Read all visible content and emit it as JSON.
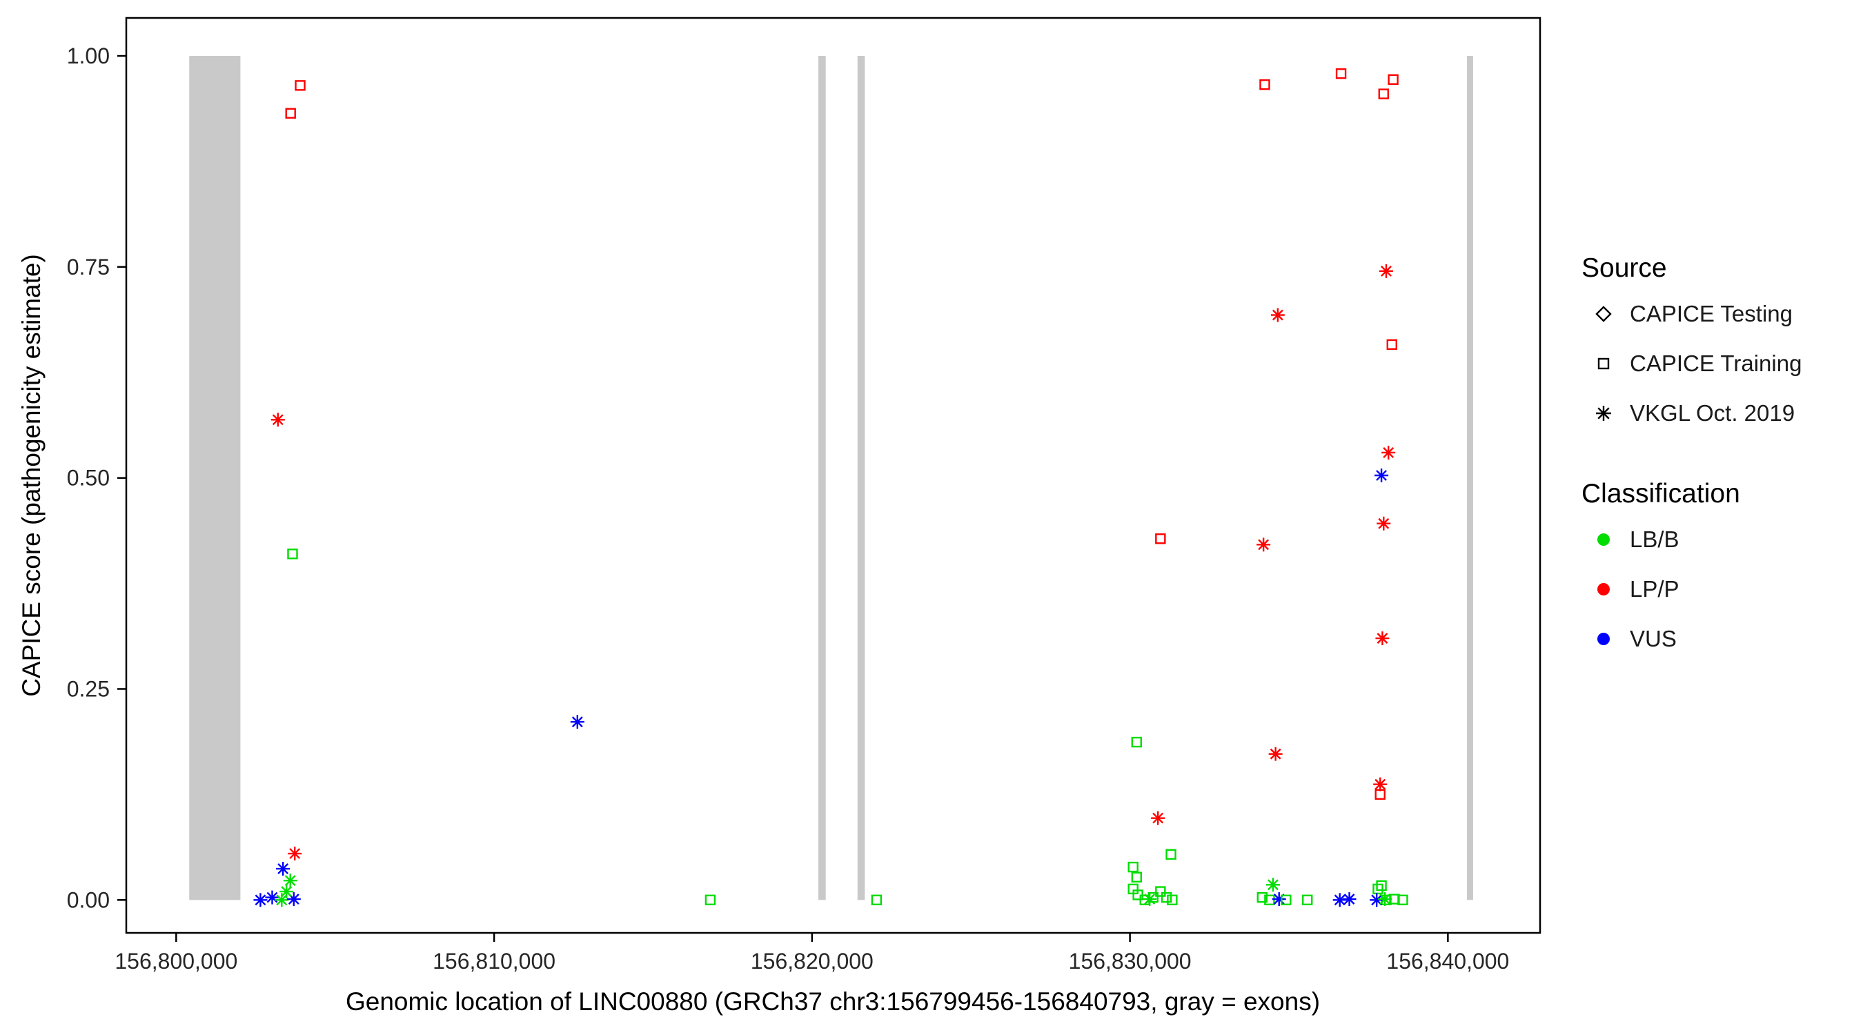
{
  "chart_data": {
    "type": "scatter",
    "title": "",
    "xlabel": "Genomic location of LINC00880 (GRCh37 chr3:156799456-156840793, gray = exons)",
    "ylabel": "CAPICE score (pathogenicity estimate)",
    "x_range": [
      156798430,
      156842900
    ],
    "y_range": [
      -0.039,
      1.045
    ],
    "grid": "off",
    "x_ticks": [
      {
        "value": 156800000,
        "label": "156,800,000"
      },
      {
        "value": 156810000,
        "label": "156,810,000"
      },
      {
        "value": 156820000,
        "label": "156,820,000"
      },
      {
        "value": 156830000,
        "label": "156,830,000"
      },
      {
        "value": 156840000,
        "label": "156,840,000"
      }
    ],
    "y_ticks": [
      {
        "value": 0,
        "label": "0.00"
      },
      {
        "value": 0.25,
        "label": "0.25"
      },
      {
        "value": 0.5,
        "label": "0.50"
      },
      {
        "value": 0.75,
        "label": "0.75"
      },
      {
        "value": 1,
        "label": "1.00"
      }
    ],
    "exon_color": "#c9c9c9",
    "exons": [
      {
        "start": 156800410,
        "end": 156802020
      },
      {
        "start": 156820200,
        "end": 156820430
      },
      {
        "start": 156821430,
        "end": 156821660
      },
      {
        "start": 156840600,
        "end": 156840793
      }
    ],
    "class_colors": {
      "LB/B": "#00dd00",
      "LP/P": "#ff0000",
      "VUS": "#0000ff"
    },
    "source_shapes": {
      "testing": "diamond",
      "training": "square",
      "vkgl": "asterisk"
    },
    "points": [
      {
        "x": 156803900,
        "y": 0.965,
        "cls": "LP/P",
        "src": "training"
      },
      {
        "x": 156803600,
        "y": 0.932,
        "cls": "LP/P",
        "src": "training"
      },
      {
        "x": 156803200,
        "y": 0.569,
        "cls": "LP/P",
        "src": "vkgl"
      },
      {
        "x": 156803660,
        "y": 0.41,
        "cls": "LB/B",
        "src": "training"
      },
      {
        "x": 156803730,
        "y": 0.055,
        "cls": "LP/P",
        "src": "vkgl"
      },
      {
        "x": 156803360,
        "y": 0.037,
        "cls": "VUS",
        "src": "vkgl"
      },
      {
        "x": 156803590,
        "y": 0.023,
        "cls": "LB/B",
        "src": "vkgl"
      },
      {
        "x": 156802650,
        "y": 0.0,
        "cls": "VUS",
        "src": "vkgl"
      },
      {
        "x": 156803020,
        "y": 0.003,
        "cls": "VUS",
        "src": "vkgl"
      },
      {
        "x": 156803320,
        "y": 0.0,
        "cls": "LB/B",
        "src": "vkgl"
      },
      {
        "x": 156803700,
        "y": 0.001,
        "cls": "VUS",
        "src": "vkgl"
      },
      {
        "x": 156803470,
        "y": 0.01,
        "cls": "LB/B",
        "src": "vkgl"
      },
      {
        "x": 156812620,
        "y": 0.211,
        "cls": "VUS",
        "src": "vkgl"
      },
      {
        "x": 156816800,
        "y": 0.0,
        "cls": "LB/B",
        "src": "training"
      },
      {
        "x": 156822030,
        "y": 0.0,
        "cls": "LB/B",
        "src": "training"
      },
      {
        "x": 156830210,
        "y": 0.187,
        "cls": "LB/B",
        "src": "training"
      },
      {
        "x": 156830960,
        "y": 0.428,
        "cls": "LP/P",
        "src": "training"
      },
      {
        "x": 156830880,
        "y": 0.097,
        "cls": "LP/P",
        "src": "vkgl"
      },
      {
        "x": 156831290,
        "y": 0.054,
        "cls": "LB/B",
        "src": "training"
      },
      {
        "x": 156830100,
        "y": 0.039,
        "cls": "LB/B",
        "src": "training"
      },
      {
        "x": 156830210,
        "y": 0.027,
        "cls": "LB/B",
        "src": "training"
      },
      {
        "x": 156830100,
        "y": 0.013,
        "cls": "LB/B",
        "src": "training"
      },
      {
        "x": 156830250,
        "y": 0.006,
        "cls": "LB/B",
        "src": "training"
      },
      {
        "x": 156830470,
        "y": 0.0,
        "cls": "LB/B",
        "src": "training"
      },
      {
        "x": 156830730,
        "y": 0.003,
        "cls": "LB/B",
        "src": "training"
      },
      {
        "x": 156830960,
        "y": 0.01,
        "cls": "LB/B",
        "src": "training"
      },
      {
        "x": 156831150,
        "y": 0.003,
        "cls": "LB/B",
        "src": "training"
      },
      {
        "x": 156831330,
        "y": 0.0,
        "cls": "LB/B",
        "src": "training"
      },
      {
        "x": 156830620,
        "y": 0.001,
        "cls": "LB/B",
        "src": "vkgl"
      },
      {
        "x": 156834240,
        "y": 0.966,
        "cls": "LP/P",
        "src": "training"
      },
      {
        "x": 156834650,
        "y": 0.693,
        "cls": "LP/P",
        "src": "vkgl"
      },
      {
        "x": 156834200,
        "y": 0.421,
        "cls": "LP/P",
        "src": "vkgl"
      },
      {
        "x": 156834580,
        "y": 0.173,
        "cls": "LP/P",
        "src": "vkgl"
      },
      {
        "x": 156834500,
        "y": 0.018,
        "cls": "LB/B",
        "src": "vkgl"
      },
      {
        "x": 156834160,
        "y": 0.003,
        "cls": "LB/B",
        "src": "training"
      },
      {
        "x": 156834390,
        "y": 0.0,
        "cls": "LB/B",
        "src": "training"
      },
      {
        "x": 156834690,
        "y": 0.001,
        "cls": "VUS",
        "src": "vkgl"
      },
      {
        "x": 156834910,
        "y": 0.0,
        "cls": "LB/B",
        "src": "training"
      },
      {
        "x": 156835580,
        "y": 0.0,
        "cls": "LB/B",
        "src": "training"
      },
      {
        "x": 156836640,
        "y": 0.979,
        "cls": "LP/P",
        "src": "training"
      },
      {
        "x": 156836600,
        "y": 0.0,
        "cls": "VUS",
        "src": "vkgl"
      },
      {
        "x": 156836900,
        "y": 0.001,
        "cls": "VUS",
        "src": "vkgl"
      },
      {
        "x": 156837980,
        "y": 0.955,
        "cls": "LP/P",
        "src": "training"
      },
      {
        "x": 156838280,
        "y": 0.972,
        "cls": "LP/P",
        "src": "training"
      },
      {
        "x": 156838060,
        "y": 0.745,
        "cls": "LP/P",
        "src": "vkgl"
      },
      {
        "x": 156838240,
        "y": 0.658,
        "cls": "LP/P",
        "src": "training"
      },
      {
        "x": 156837910,
        "y": 0.503,
        "cls": "VUS",
        "src": "vkgl"
      },
      {
        "x": 156838130,
        "y": 0.53,
        "cls": "LP/P",
        "src": "vkgl"
      },
      {
        "x": 156837980,
        "y": 0.446,
        "cls": "LP/P",
        "src": "vkgl"
      },
      {
        "x": 156837940,
        "y": 0.31,
        "cls": "LP/P",
        "src": "vkgl"
      },
      {
        "x": 156837870,
        "y": 0.137,
        "cls": "LP/P",
        "src": "vkgl"
      },
      {
        "x": 156837870,
        "y": 0.125,
        "cls": "LP/P",
        "src": "training"
      },
      {
        "x": 156837800,
        "y": 0.013,
        "cls": "LB/B",
        "src": "training"
      },
      {
        "x": 156837910,
        "y": 0.017,
        "cls": "LB/B",
        "src": "training"
      },
      {
        "x": 156838060,
        "y": 0.0,
        "cls": "LB/B",
        "src": "training"
      },
      {
        "x": 156838320,
        "y": 0.001,
        "cls": "LB/B",
        "src": "training"
      },
      {
        "x": 156838580,
        "y": 0.0,
        "cls": "LB/B",
        "src": "training"
      },
      {
        "x": 156837760,
        "y": 0.0,
        "cls": "VUS",
        "src": "vkgl"
      },
      {
        "x": 156838020,
        "y": 0.001,
        "cls": "LB/B",
        "src": "vkgl"
      }
    ]
  },
  "legend": {
    "source_title": "Source",
    "source_items": [
      {
        "label": "CAPICE Testing",
        "shape": "diamond"
      },
      {
        "label": "CAPICE Training",
        "shape": "square"
      },
      {
        "label": "VKGL Oct. 2019",
        "shape": "asterisk"
      }
    ],
    "classification_title": "Classification",
    "classification_items": [
      {
        "label": "LB/B",
        "color": "#00dd00"
      },
      {
        "label": "LP/P",
        "color": "#ff0000"
      },
      {
        "label": "VUS",
        "color": "#0000ff"
      }
    ]
  }
}
